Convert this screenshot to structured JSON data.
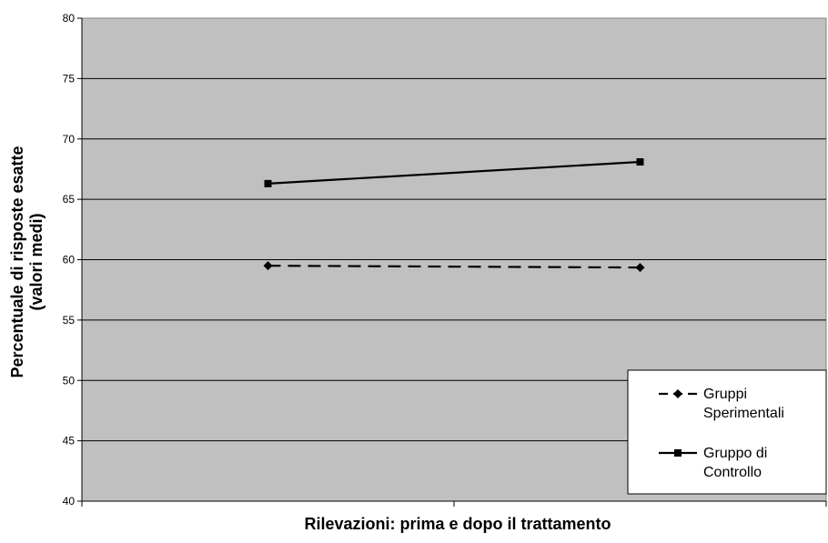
{
  "chart_data": {
    "type": "line",
    "title": "",
    "xlabel": "Rilevazioni: prima e dopo il trattamento",
    "ylabel_line1": "Percentuale di risposte esatte",
    "ylabel_line2": "(valori medi)",
    "ylim": [
      40,
      80
    ],
    "yticks": [
      40,
      45,
      50,
      55,
      60,
      65,
      70,
      75,
      80
    ],
    "x": [
      1,
      2
    ],
    "xlim": [
      0.5,
      2.5
    ],
    "grid": true,
    "plot_background": "#c0c0c0",
    "legend_position": "bottom-right",
    "series": [
      {
        "name_line1": "Gruppi",
        "name_line2": "Sperimentali",
        "values": [
          59.5,
          59.35
        ],
        "line_style": "dashed",
        "marker": "diamond",
        "color": "#000000"
      },
      {
        "name_line1": "Gruppo di",
        "name_line2": "Controllo",
        "values": [
          66.3,
          68.1
        ],
        "line_style": "solid",
        "marker": "square",
        "color": "#000000"
      }
    ]
  }
}
